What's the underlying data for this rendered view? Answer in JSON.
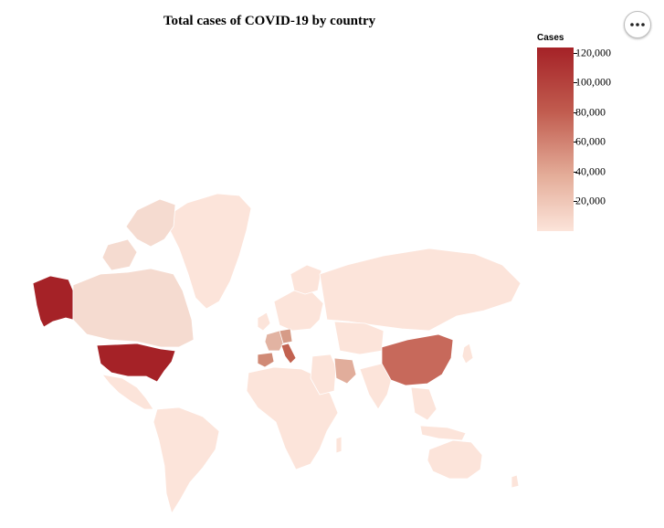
{
  "title": "Total cases of COVID-19 by country",
  "actions_icon": "ellipsis-icon",
  "legend": {
    "title": "Cases",
    "ticks": [
      {
        "label": "120,000",
        "value": 120000
      },
      {
        "label": "100,000",
        "value": 100000
      },
      {
        "label": "80,000",
        "value": 80000
      },
      {
        "label": "60,000",
        "value": 60000
      },
      {
        "label": "40,000",
        "value": 40000
      },
      {
        "label": "20,000",
        "value": 20000
      }
    ],
    "color_low": "#fce4da",
    "color_high": "#a52227"
  },
  "map_data": {
    "type": "choropleth",
    "projection": "mercator",
    "regions": [
      {
        "name": "United States",
        "value": 123000,
        "color": "#a52227"
      },
      {
        "name": "China",
        "value": 81000,
        "color": "#c7695b"
      },
      {
        "name": "Italy",
        "value": 86000,
        "color": "#c26250"
      },
      {
        "name": "Spain",
        "value": 65000,
        "color": "#d08a76"
      },
      {
        "name": "Germany",
        "value": 52000,
        "color": "#d69b87"
      },
      {
        "name": "France",
        "value": 33000,
        "color": "#e2b3a2"
      },
      {
        "name": "Iran",
        "value": 35000,
        "color": "#e1ad9b"
      },
      {
        "name": "Canada",
        "value": 5000,
        "color": "#f5dbd0"
      },
      {
        "name": "Russia",
        "value": 1000,
        "color": "#fce4da"
      },
      {
        "name": "Greenland",
        "value": 10,
        "color": "#fce4da"
      },
      {
        "name": "Brazil",
        "value": 3400,
        "color": "#fce4da"
      },
      {
        "name": "Australia",
        "value": 3600,
        "color": "#fce4da"
      },
      {
        "name": "India",
        "value": 900,
        "color": "#fce4da"
      },
      {
        "name": "Rest of world",
        "value": 500,
        "color": "#fce4da"
      }
    ]
  }
}
